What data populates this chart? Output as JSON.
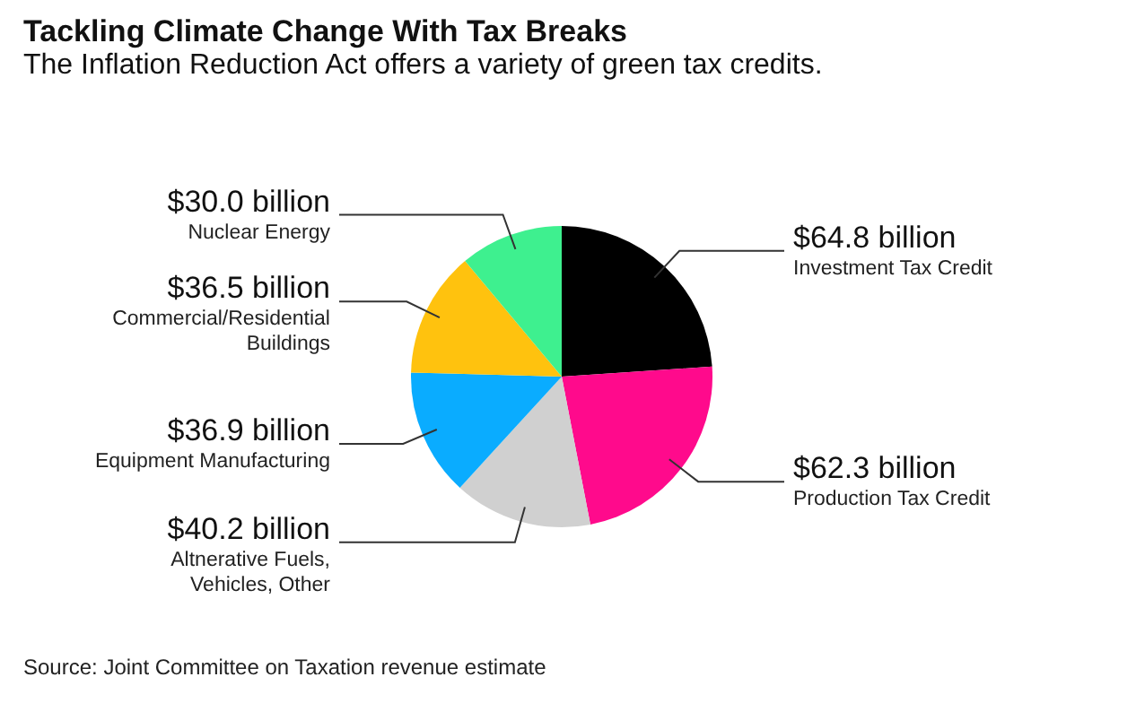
{
  "chart_data": {
    "type": "pie",
    "title": "Tackling Climate Change With Tax Breaks",
    "subtitle": "The Inflation Reduction Act offers a variety of green tax credits.",
    "categories": [
      "Investment Tax Credit",
      "Production Tax Credit",
      "Altnerative Fuels, Vehicles, Other",
      "Equipment Manufacturing",
      "Commercial/Residential Buildings",
      "Nuclear Energy"
    ],
    "values": [
      64.8,
      62.3,
      40.2,
      36.9,
      36.5,
      30.0
    ],
    "value_labels": [
      "$64.8 billion",
      "$62.3 billion",
      "$40.2 billion",
      "$36.9 billion",
      "$36.5 billion",
      "$30.0 billion"
    ],
    "colors": [
      "#000000",
      "#ff0a8c",
      "#d0d0d0",
      "#0aacff",
      "#ffc20e",
      "#3ef08f"
    ],
    "annotations": [
      "Source: Joint Committee on Taxation revenue estimate"
    ]
  }
}
